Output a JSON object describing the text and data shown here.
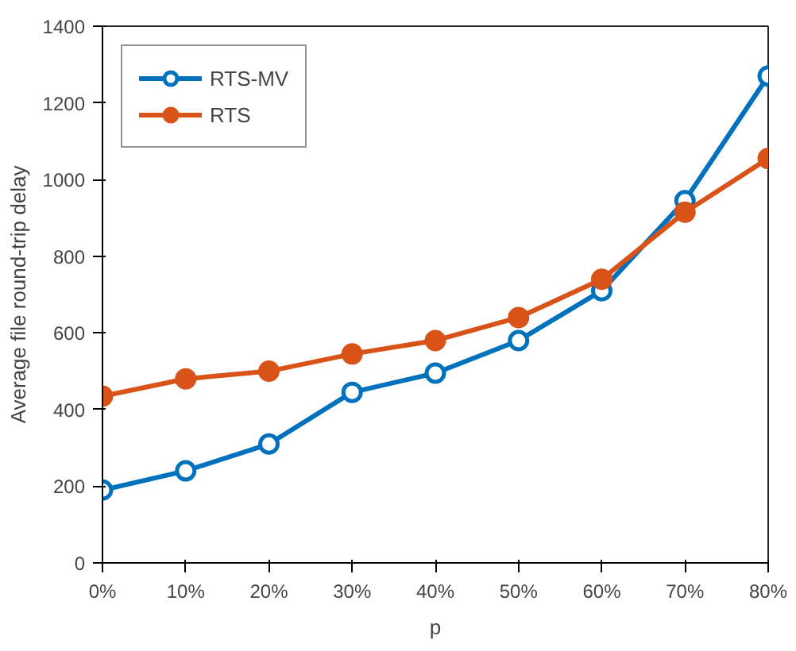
{
  "chart_data": {
    "type": "line",
    "xlabel": "p",
    "ylabel": "Average file round-trip delay",
    "categories": [
      "0%",
      "10%",
      "20%",
      "30%",
      "40%",
      "50%",
      "60%",
      "70%",
      "80%"
    ],
    "series": [
      {
        "name": "RTS-MV",
        "color": "#0072bd",
        "values": [
          190,
          240,
          310,
          445,
          495,
          580,
          710,
          945,
          1270
        ]
      },
      {
        "name": "RTS",
        "color": "#d95319",
        "values": [
          435,
          480,
          500,
          545,
          580,
          640,
          740,
          915,
          1055
        ]
      }
    ],
    "ylim": [
      0,
      1400
    ],
    "yticks": [
      0,
      200,
      400,
      600,
      800,
      1000,
      1200,
      1400
    ],
    "grid": false,
    "legend": "top left",
    "marker": "circle",
    "line_style": "solid"
  }
}
